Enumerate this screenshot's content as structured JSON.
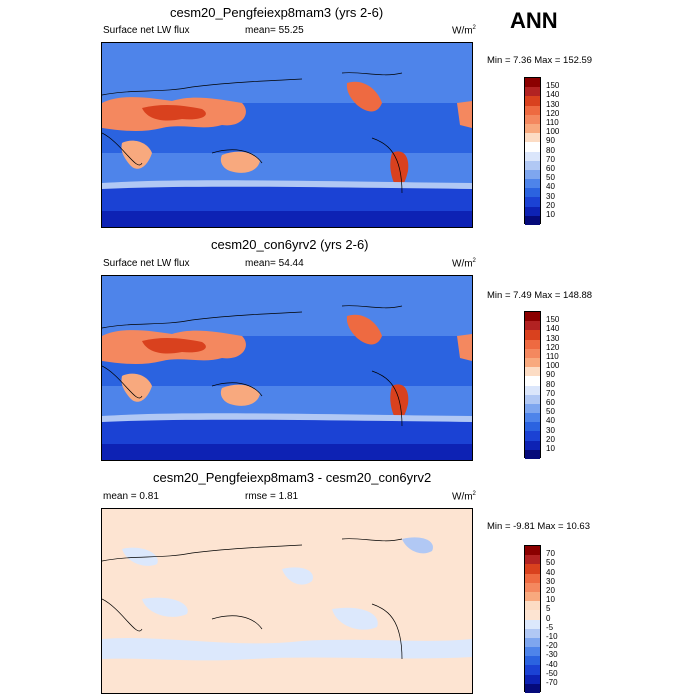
{
  "season": "ANN",
  "panels": [
    {
      "title": "cesm20_Pengfeiexp8mam3 (yrs 2-6)",
      "left_label": "Surface net LW flux",
      "mid_label": "mean=  55.25",
      "units": "W/m",
      "units_sup": "2",
      "minmax": "Min =   7.36 Max = 152.59",
      "colorbar": {
        "labels": [
          "150",
          "140",
          "130",
          "120",
          "110",
          "100",
          "90",
          "80",
          "70",
          "60",
          "50",
          "40",
          "30",
          "20",
          "10"
        ],
        "colors": [
          "#8b0000",
          "#b22222",
          "#d9411e",
          "#ee6a41",
          "#f4885f",
          "#f8a97e",
          "#fcdcc4",
          "#ffffff",
          "#dbe6fb",
          "#b1c8f4",
          "#7ea6ef",
          "#4e84ea",
          "#2b63e0",
          "#1b42d4",
          "#0d22b4",
          "#050a7a"
        ]
      }
    },
    {
      "title": "cesm20_con6yrv2 (yrs 2-6)",
      "left_label": "Surface net LW flux",
      "mid_label": "mean=  54.44",
      "units": "W/m",
      "units_sup": "2",
      "minmax": "Min =   7.49 Max = 148.88",
      "colorbar": {
        "labels": [
          "150",
          "140",
          "130",
          "120",
          "110",
          "100",
          "90",
          "80",
          "70",
          "60",
          "50",
          "40",
          "30",
          "20",
          "10"
        ],
        "colors": [
          "#8b0000",
          "#b22222",
          "#d9411e",
          "#ee6a41",
          "#f4885f",
          "#f8a97e",
          "#fcdcc4",
          "#ffffff",
          "#dbe6fb",
          "#b1c8f4",
          "#7ea6ef",
          "#4e84ea",
          "#2b63e0",
          "#1b42d4",
          "#0d22b4",
          "#050a7a"
        ]
      }
    },
    {
      "title": "cesm20_Pengfeiexp8mam3 - cesm20_con6yrv2",
      "left_label": "mean =   0.81",
      "mid_label": "rmse =   1.81",
      "units": "W/m",
      "units_sup": "2",
      "minmax": "Min =  -9.81 Max =  10.63",
      "colorbar": {
        "labels": [
          "70",
          "50",
          "40",
          "30",
          "20",
          "10",
          "5",
          "0",
          "-5",
          "-10",
          "-20",
          "-30",
          "-40",
          "-50",
          "-70"
        ],
        "colors": [
          "#8b0000",
          "#b22222",
          "#d9411e",
          "#ee6a41",
          "#f4885f",
          "#f8a97e",
          "#fcdcc4",
          "#fde4d2",
          "#dce8fc",
          "#b1c8f4",
          "#7ea6ef",
          "#4e84ea",
          "#2b63e0",
          "#1b42d4",
          "#0d22b4",
          "#050a7a"
        ]
      }
    }
  ],
  "chart_data": [
    {
      "type": "heatmap",
      "title": "cesm20_Pengfeiexp8mam3 (yrs 2-6)",
      "variable": "Surface net LW flux",
      "units": "W/m2",
      "mean": 55.25,
      "min": 7.36,
      "max": 152.59,
      "contour_levels": [
        10,
        20,
        30,
        40,
        50,
        60,
        70,
        80,
        90,
        100,
        110,
        120,
        130,
        140,
        150
      ]
    },
    {
      "type": "heatmap",
      "title": "cesm20_con6yrv2 (yrs 2-6)",
      "variable": "Surface net LW flux",
      "units": "W/m2",
      "mean": 54.44,
      "min": 7.49,
      "max": 148.88,
      "contour_levels": [
        10,
        20,
        30,
        40,
        50,
        60,
        70,
        80,
        90,
        100,
        110,
        120,
        130,
        140,
        150
      ]
    },
    {
      "type": "heatmap",
      "title": "cesm20_Pengfeiexp8mam3 - cesm20_con6yrv2",
      "units": "W/m2",
      "mean": 0.81,
      "rmse": 1.81,
      "min": -9.81,
      "max": 10.63,
      "contour_levels": [
        -70,
        -50,
        -40,
        -30,
        -20,
        -10,
        -5,
        0,
        5,
        10,
        20,
        30,
        40,
        50,
        70
      ]
    }
  ]
}
